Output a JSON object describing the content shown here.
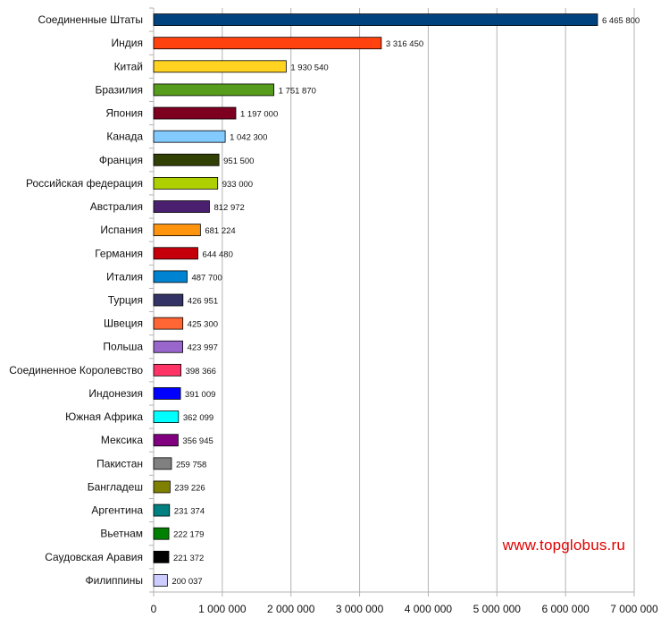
{
  "chart_data": {
    "type": "bar",
    "orientation": "horizontal",
    "categories": [
      "Соединенные Штаты",
      "Индия",
      "Китай",
      "Бразилия",
      "Япония",
      "Канада",
      "Франция",
      "Российская федерация",
      "Австралия",
      "Испания",
      "Германия",
      "Италия",
      "Турция",
      "Швеция",
      "Польша",
      "Соединенное Королевство",
      "Индонезия",
      "Южная Африка",
      "Мексика",
      "Пакистан",
      "Бангладеш",
      "Аргентина",
      "Вьетнам",
      "Саудовская Аравия",
      "Филиппины"
    ],
    "values": [
      6465800,
      3316450,
      1930540,
      1751870,
      1197000,
      1042300,
      951500,
      933000,
      812972,
      681224,
      644480,
      487700,
      426951,
      425300,
      423997,
      398366,
      391009,
      362099,
      356945,
      259758,
      239226,
      231374,
      222179,
      221372,
      200037
    ],
    "value_labels": [
      "6 465 800",
      "3 316 450",
      "1 930 540",
      "1 751 870",
      "1 197 000",
      "1 042 300",
      "951 500",
      "933 000",
      "812 972",
      "681 224",
      "644 480",
      "487 700",
      "426 951",
      "425 300",
      "423 997",
      "398 366",
      "391 009",
      "362 099",
      "356 945",
      "259 758",
      "239 226",
      "231 374",
      "222 179",
      "221 372",
      "200 037"
    ],
    "colors": [
      "#00427e",
      "#ff420e",
      "#ffd320",
      "#579d1c",
      "#7e0021",
      "#83caff",
      "#314004",
      "#aecf00",
      "#4b1f6f",
      "#ff950e",
      "#c5000b",
      "#0084d1",
      "#333366",
      "#ff6633",
      "#9966cc",
      "#ff3366",
      "#0000ff",
      "#00ffff",
      "#800080",
      "#808080",
      "#808000",
      "#008080",
      "#008000",
      "#000000",
      "#ccccff"
    ],
    "xlim": [
      0,
      7000000
    ],
    "x_ticks": [
      0,
      1000000,
      2000000,
      3000000,
      4000000,
      5000000,
      6000000,
      7000000
    ],
    "x_tick_labels": [
      "0",
      "1 000 000",
      "2 000 000",
      "3 000 000",
      "4 000 000",
      "5 000 000",
      "6 000 000",
      "7 000 000"
    ],
    "grid": "vertical",
    "title": "",
    "xlabel": "",
    "ylabel": ""
  },
  "watermark": "www.topglobus.ru"
}
